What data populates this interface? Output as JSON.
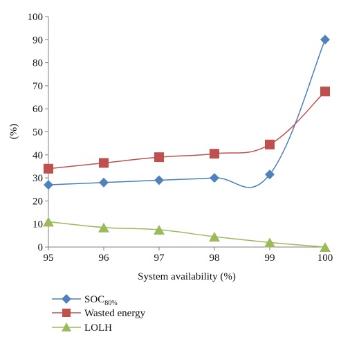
{
  "chart_data": {
    "type": "line",
    "xlabel": "System availability (%)",
    "ylabel": "(%)",
    "categories": [
      "95",
      "96",
      "97",
      "98",
      "99",
      "100"
    ],
    "ylim": [
      0,
      100
    ],
    "yticks": [
      "0",
      "10",
      "20",
      "30",
      "40",
      "50",
      "60",
      "70",
      "80",
      "90",
      "100"
    ],
    "grid": false,
    "legend_position": "bottom-left",
    "series": [
      {
        "name_main": "SOC",
        "name_sub": "80%",
        "marker": "diamond",
        "color": "#4a7ebb",
        "marker_color": "#4f81bd",
        "values": [
          27,
          28,
          29,
          30,
          31.5,
          90
        ]
      },
      {
        "name": "Wasted energy",
        "marker": "square",
        "color": "#c0504d",
        "marker_color": "#c0504d",
        "values": [
          34,
          36.5,
          39,
          40.5,
          44.5,
          67.5
        ]
      },
      {
        "name": "LOLH",
        "marker": "triangle",
        "color": "#9bbb59",
        "marker_color": "#9bbb59",
        "values": [
          11,
          8.5,
          7.5,
          4.5,
          2,
          0
        ]
      }
    ]
  }
}
